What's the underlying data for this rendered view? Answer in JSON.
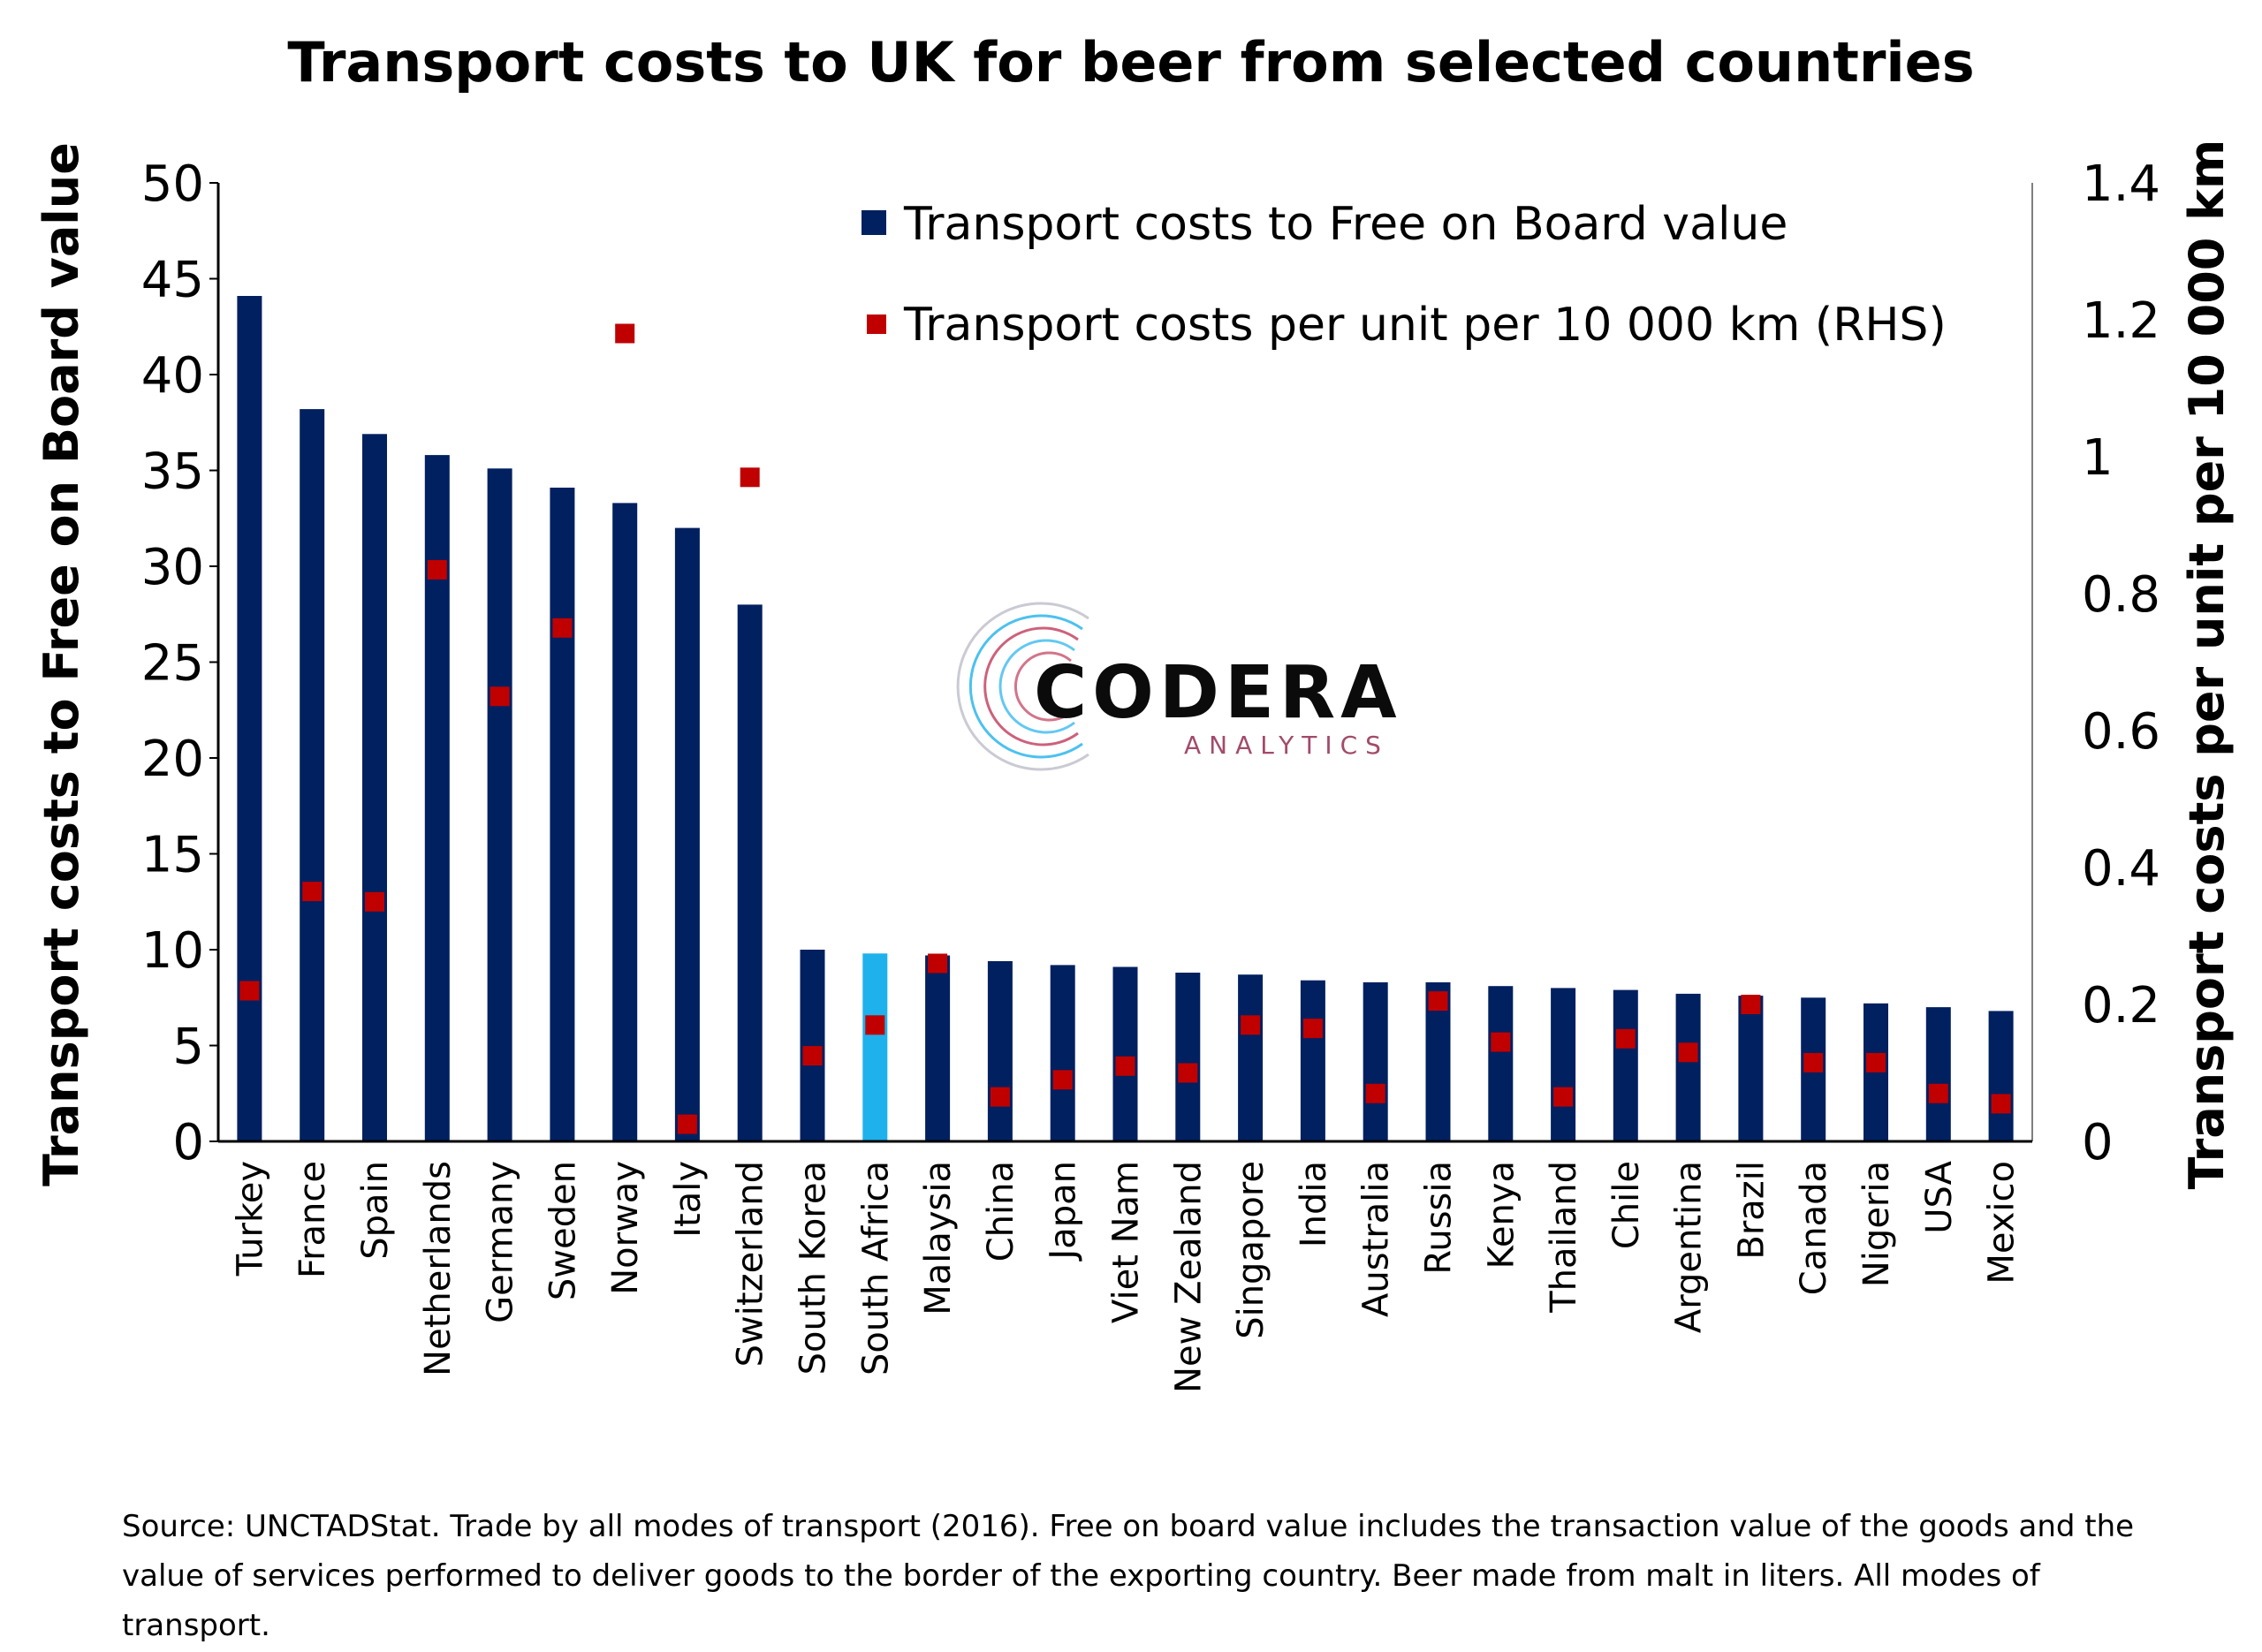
{
  "chart_data": {
    "type": "bar",
    "title": "Transport costs to UK for beer from selected countries",
    "categories": [
      "Turkey",
      "France",
      "Spain",
      "Netherlands",
      "Germany",
      "Sweden",
      "Norway",
      "Italy",
      "Switzerland",
      "South Korea",
      "South Africa",
      "Malaysia",
      "China",
      "Japan",
      "Viet Nam",
      "New Zealand",
      "Singapore",
      "India",
      "Australia",
      "Russia",
      "Kenya",
      "Thailand",
      "Chile",
      "Argentina",
      "Brazil",
      "Canada",
      "Nigeria",
      "USA",
      "Mexico"
    ],
    "highlight_category": "South Africa",
    "ylabel": "Transport costs to Free on Board value",
    "y2label": "Transport costs per unit per 10 000 km",
    "ylim": [
      0,
      50
    ],
    "y2lim": [
      0,
      1.4
    ],
    "yticks": [
      "0",
      "5",
      "10",
      "15",
      "20",
      "25",
      "30",
      "35",
      "40",
      "45",
      "50"
    ],
    "y2ticks": [
      "0",
      "0.2",
      "0.4",
      "0.6",
      "0.8",
      "1",
      "1.2",
      "1.4"
    ],
    "legend_position": "top-right",
    "grid": false,
    "series": [
      {
        "name": "Transport costs to Free on Board value",
        "kind": "bar",
        "axis": "left",
        "color": "#002060",
        "highlight_color": "#1fb1ec",
        "values": [
          44.1,
          38.2,
          36.9,
          35.8,
          35.1,
          34.1,
          33.3,
          32.0,
          28.0,
          10.0,
          9.8,
          9.7,
          9.4,
          9.2,
          9.1,
          8.8,
          8.7,
          8.4,
          8.3,
          8.3,
          8.1,
          8.0,
          7.9,
          7.7,
          7.6,
          7.5,
          7.2,
          7.0,
          6.8
        ]
      },
      {
        "name": "Transport costs per unit per 10 000 km (RHS)",
        "kind": "scatter",
        "axis": "right",
        "color": "#c00000",
        "values": [
          0.22,
          0.365,
          0.35,
          0.835,
          0.65,
          0.75,
          1.18,
          0.025,
          0.97,
          0.125,
          0.17,
          0.26,
          0.065,
          0.09,
          0.11,
          0.1,
          0.17,
          0.165,
          0.07,
          0.205,
          0.145,
          0.065,
          0.15,
          0.13,
          0.2,
          0.115,
          0.115,
          0.07,
          0.055
        ]
      }
    ]
  },
  "legend": {
    "bar_label": "Transport costs to Free on Board value",
    "marker_label": "Transport costs per unit per 10 000 km (RHS)"
  },
  "logo": {
    "name": "CODERA",
    "tagline": "ANALYTICS"
  },
  "source_note": "Source: UNCTADStat.  Trade by all modes of transport (2016).  Free on board value includes the transaction value of the goods and the value of services performed to deliver goods to the border of the exporting country. Beer made from malt in liters. All modes of transport.",
  "colors": {
    "bar": "#002060",
    "highlight_bar": "#1fb1ec",
    "marker": "#c00000",
    "axis": "#000000"
  }
}
